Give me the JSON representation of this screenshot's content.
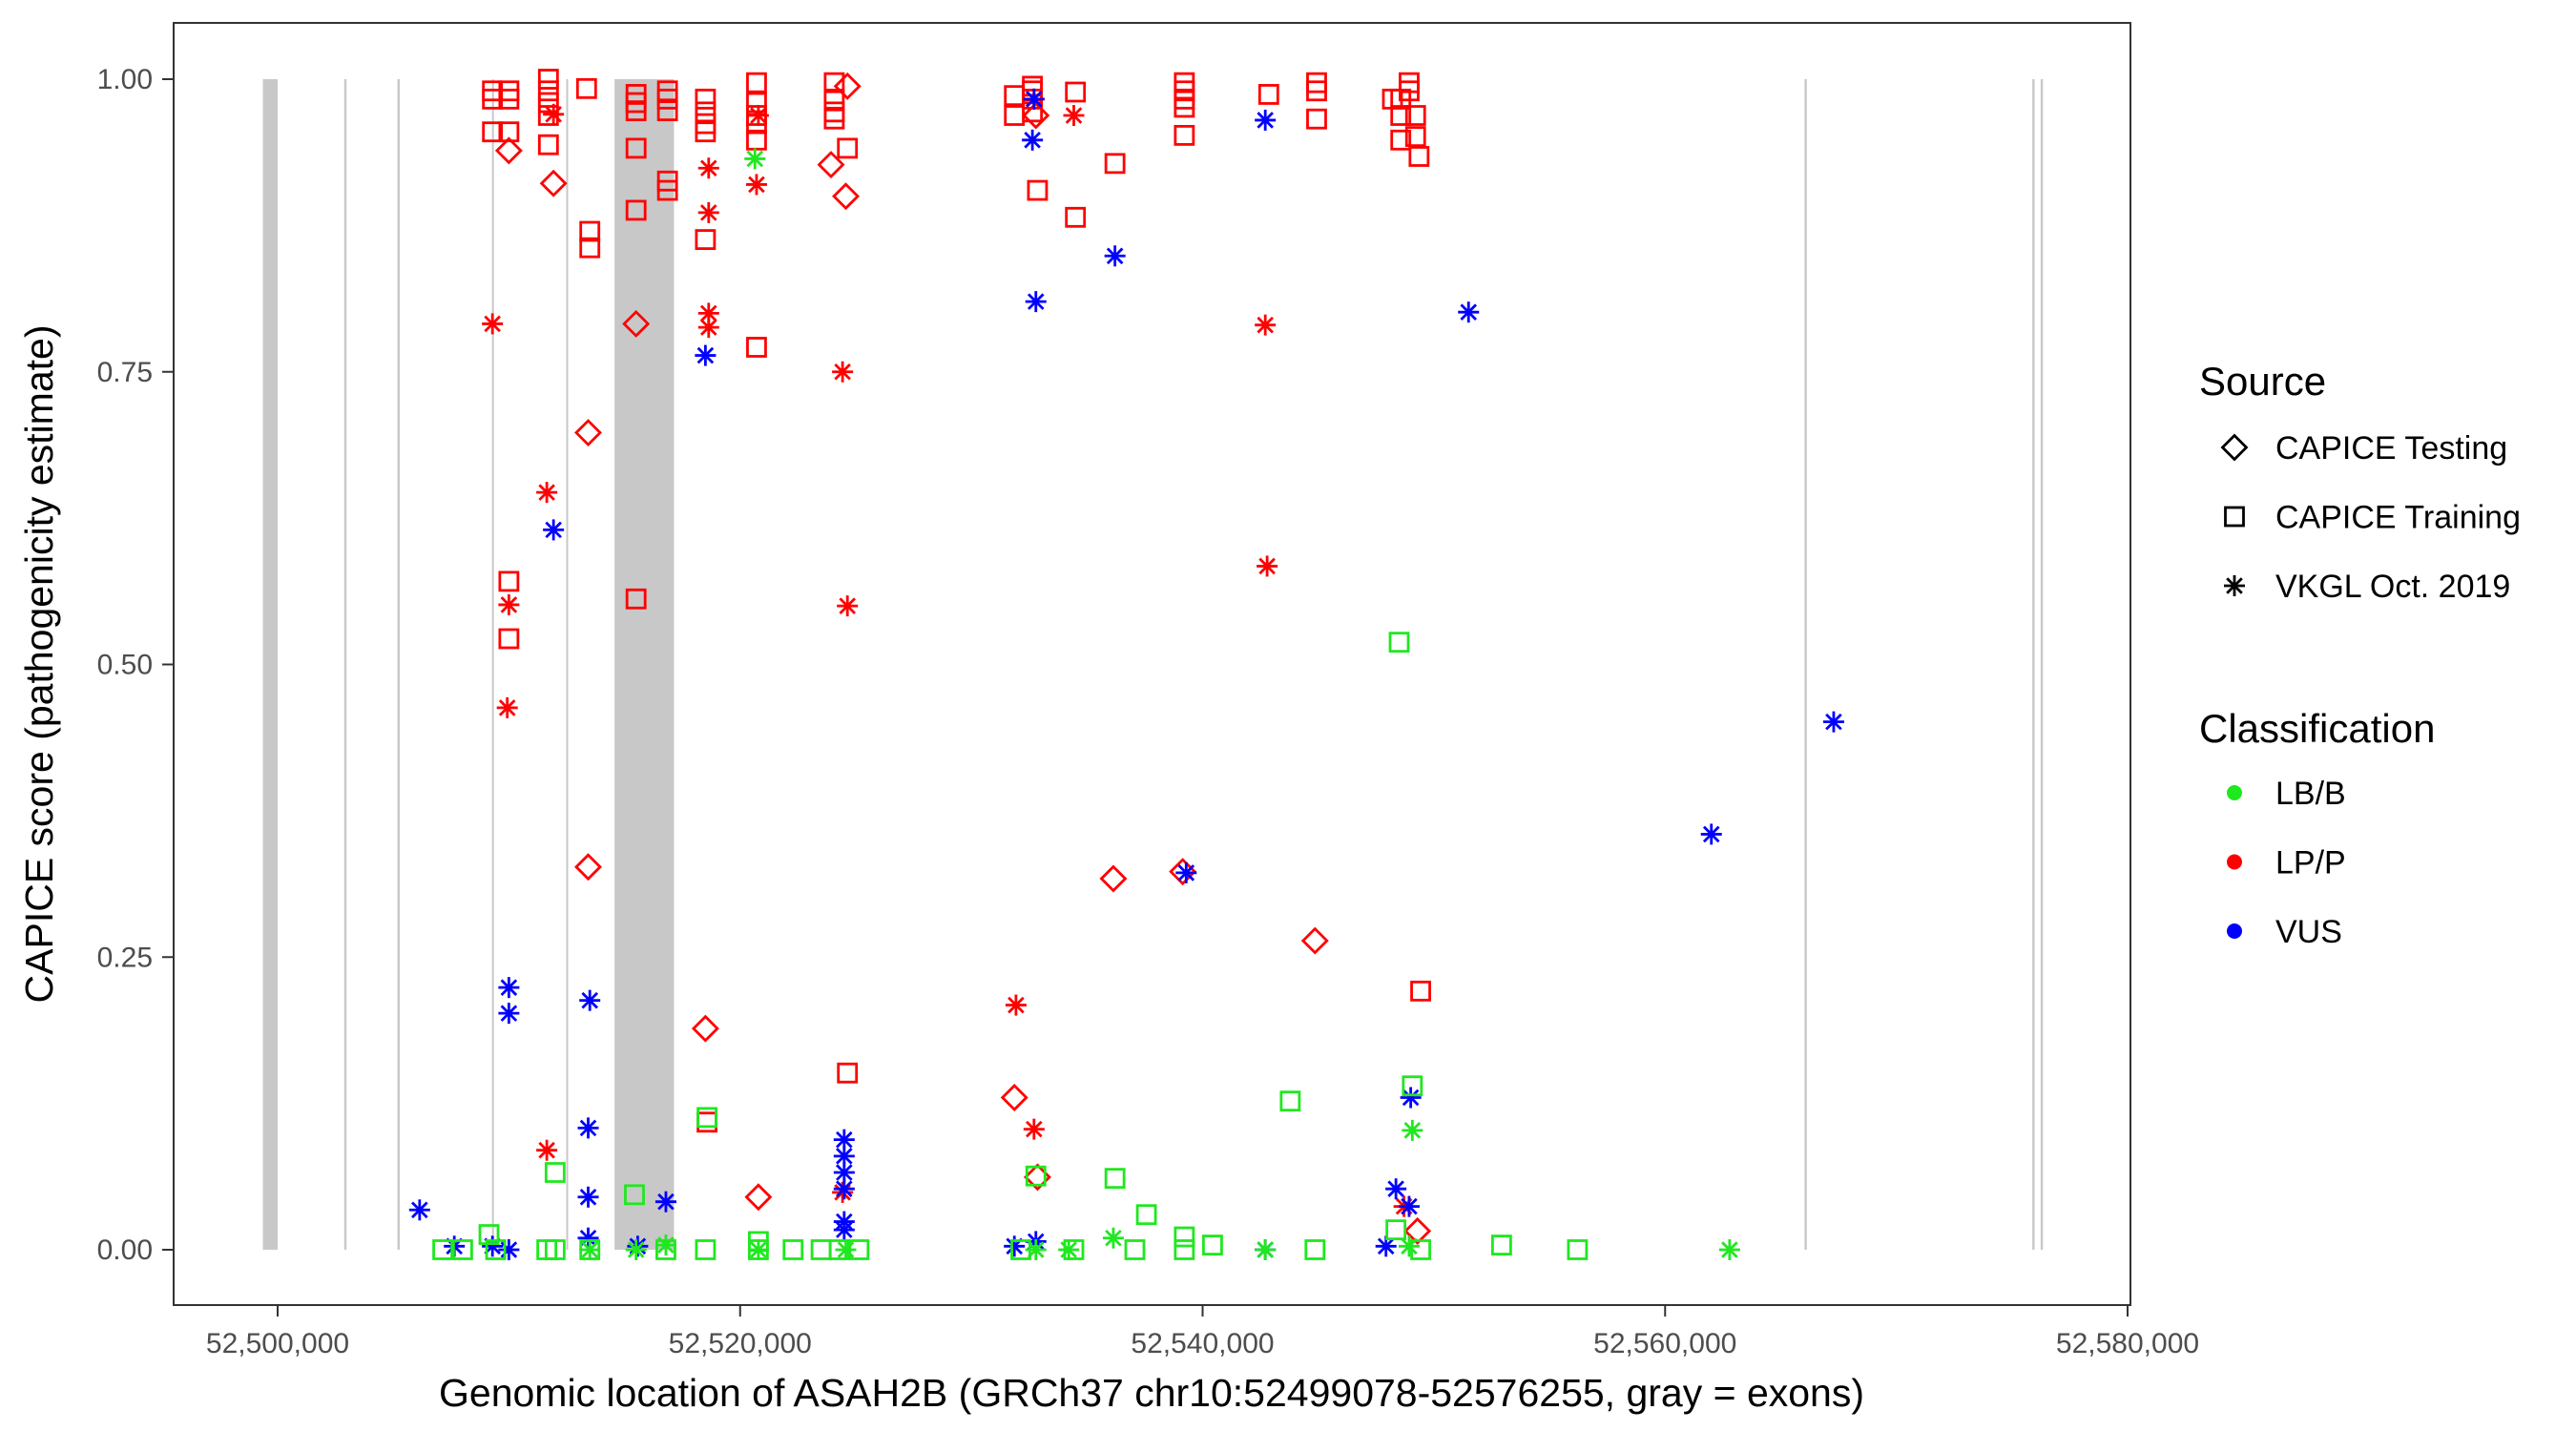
{
  "chart_data": {
    "type": "scatter",
    "xlabel": "Genomic location of ASAH2B (GRCh37 chr10:52499078-52576255, gray = exons)",
    "ylabel": "CAPICE score (pathogenicity estimate)",
    "x_origin_bp": 52500000,
    "x_unit": "kb offset from x_origin_bp",
    "xlim": [
      -0.9,
      80.1
    ],
    "ylim": [
      -0.045,
      1.045
    ],
    "x_ticks": [
      0,
      20,
      40,
      60,
      80
    ],
    "x_tick_labels": [
      "52,500,000",
      "52,520,000",
      "52,540,000",
      "52,560,000",
      "52,580,000"
    ],
    "y_ticks": [
      0,
      0.25,
      0.5,
      0.75,
      1.0
    ],
    "y_tick_labels": [
      "0.00",
      "0.25",
      "0.50",
      "0.75",
      "1.00"
    ],
    "grid": false,
    "legend_position": "right",
    "exons_kb": [
      [
        -0.64,
        0.0
      ],
      [
        2.88,
        2.98
      ],
      [
        5.18,
        5.28
      ],
      [
        9.27,
        9.31
      ],
      [
        12.48,
        12.52
      ],
      [
        14.57,
        17.14
      ],
      [
        66.03,
        66.13
      ],
      [
        75.88,
        75.98
      ],
      [
        76.24,
        76.34
      ]
    ],
    "legend": {
      "source_title": "Source",
      "sources": [
        {
          "label": "CAPICE Testing",
          "shape": "diamond"
        },
        {
          "label": "CAPICE Training",
          "shape": "square"
        },
        {
          "label": "VKGL Oct. 2019",
          "shape": "asterisk"
        }
      ],
      "class_title": "Classification",
      "classes": [
        {
          "label": "LB/B",
          "color": "#1fe81f"
        },
        {
          "label": "LP/P",
          "color": "#ff0000"
        },
        {
          "label": "VUS",
          "color": "#0000ff"
        }
      ]
    },
    "series": [
      {
        "source": "CAPICE Training",
        "class": "LP/P",
        "points": [
          [
            9.29,
            0.99
          ],
          [
            9.29,
            0.983
          ],
          [
            9.29,
            0.955
          ],
          [
            10.0,
            0.99
          ],
          [
            10.0,
            0.983
          ],
          [
            10.0,
            0.955
          ],
          [
            11.71,
            1.0
          ],
          [
            11.71,
            0.99
          ],
          [
            11.71,
            0.98
          ],
          [
            11.71,
            0.969
          ],
          [
            11.71,
            0.944
          ],
          [
            13.36,
            0.992
          ],
          [
            13.5,
            0.87
          ],
          [
            13.5,
            0.856
          ],
          [
            15.5,
            0.987
          ],
          [
            15.5,
            0.98
          ],
          [
            15.5,
            0.973
          ],
          [
            15.5,
            0.941
          ],
          [
            15.5,
            0.888
          ],
          [
            16.86,
            0.99
          ],
          [
            16.86,
            0.983
          ],
          [
            16.86,
            0.973
          ],
          [
            16.86,
            0.913
          ],
          [
            16.86,
            0.905
          ],
          [
            18.5,
            0.983
          ],
          [
            18.5,
            0.972
          ],
          [
            18.5,
            0.962
          ],
          [
            18.5,
            0.955
          ],
          [
            18.5,
            0.863
          ],
          [
            18.57,
            0.109
          ],
          [
            20.71,
            0.997
          ],
          [
            20.71,
            0.98
          ],
          [
            20.71,
            0.969
          ],
          [
            20.71,
            0.962
          ],
          [
            20.71,
            0.948
          ],
          [
            20.71,
            0.771
          ],
          [
            24.07,
            0.997
          ],
          [
            24.07,
            0.983
          ],
          [
            24.07,
            0.972
          ],
          [
            24.07,
            0.966
          ],
          [
            24.64,
            0.941
          ],
          [
            24.64,
            0.151
          ],
          [
            31.86,
            0.986
          ],
          [
            31.86,
            0.969
          ],
          [
            32.64,
            0.994
          ],
          [
            32.64,
            0.99
          ],
          [
            32.64,
            0.983
          ],
          [
            32.64,
            0.972
          ],
          [
            32.86,
            0.905
          ],
          [
            34.5,
            0.989
          ],
          [
            34.5,
            0.882
          ],
          [
            36.21,
            0.928
          ],
          [
            39.21,
            0.997
          ],
          [
            39.21,
            0.99
          ],
          [
            39.21,
            0.983
          ],
          [
            39.21,
            0.976
          ],
          [
            39.21,
            0.952
          ],
          [
            42.86,
            0.987
          ],
          [
            44.93,
            0.997
          ],
          [
            44.93,
            0.99
          ],
          [
            44.93,
            0.966
          ],
          [
            48.21,
            0.983
          ],
          [
            48.57,
            0.983
          ],
          [
            48.57,
            0.969
          ],
          [
            48.57,
            0.948
          ],
          [
            48.93,
            0.997
          ],
          [
            48.93,
            0.99
          ],
          [
            49.21,
            0.969
          ],
          [
            49.21,
            0.951
          ],
          [
            49.36,
            0.934
          ],
          [
            49.43,
            0.221
          ],
          [
            10.0,
            0.571
          ],
          [
            10.0,
            0.522
          ],
          [
            15.5,
            0.556
          ]
        ]
      },
      {
        "source": "CAPICE Testing",
        "class": "LP/P",
        "points": [
          [
            10.0,
            0.939
          ],
          [
            11.93,
            0.911
          ],
          [
            15.5,
            0.791
          ],
          [
            13.43,
            0.698
          ],
          [
            13.43,
            0.327
          ],
          [
            18.5,
            0.189
          ],
          [
            20.79,
            0.045
          ],
          [
            23.93,
            0.927
          ],
          [
            24.57,
            0.9
          ],
          [
            24.64,
            0.994
          ],
          [
            31.86,
            0.13
          ],
          [
            32.86,
            0.062
          ],
          [
            32.79,
            0.969
          ],
          [
            36.14,
            0.317
          ],
          [
            39.14,
            0.323
          ],
          [
            44.86,
            0.264
          ],
          [
            49.29,
            0.016
          ]
        ]
      },
      {
        "source": "VKGL Oct. 2019",
        "class": "LP/P",
        "points": [
          [
            9.29,
            0.791
          ],
          [
            11.64,
            0.647
          ],
          [
            10.0,
            0.551
          ],
          [
            9.93,
            0.463
          ],
          [
            11.64,
            0.085
          ],
          [
            18.64,
            0.924
          ],
          [
            18.64,
            0.886
          ],
          [
            18.64,
            0.8
          ],
          [
            18.64,
            0.788
          ],
          [
            20.71,
            0.91
          ],
          [
            20.79,
            0.969
          ],
          [
            24.43,
            0.75
          ],
          [
            24.64,
            0.55
          ],
          [
            24.43,
            0.049
          ],
          [
            31.93,
            0.209
          ],
          [
            32.71,
            0.103
          ],
          [
            34.43,
            0.969
          ],
          [
            42.71,
            0.79
          ],
          [
            42.79,
            0.584
          ],
          [
            48.71,
            0.037
          ],
          [
            32.71,
            0.983
          ],
          [
            11.93,
            0.97
          ]
        ]
      },
      {
        "source": "VKGL Oct. 2019",
        "class": "VUS",
        "points": [
          [
            6.14,
            0.034
          ],
          [
            7.64,
            0.003
          ],
          [
            9.29,
            0.003
          ],
          [
            10.0,
            0.224
          ],
          [
            10.0,
            0.202
          ],
          [
            10.0,
            0.0
          ],
          [
            11.93,
            0.615
          ],
          [
            13.5,
            0.213
          ],
          [
            13.43,
            0.104
          ],
          [
            13.43,
            0.045
          ],
          [
            13.43,
            0.01
          ],
          [
            15.57,
            0.003
          ],
          [
            16.79,
            0.041
          ],
          [
            18.5,
            0.764
          ],
          [
            24.5,
            0.094
          ],
          [
            24.5,
            0.08
          ],
          [
            24.5,
            0.066
          ],
          [
            24.5,
            0.052
          ],
          [
            24.5,
            0.024
          ],
          [
            24.5,
            0.017
          ],
          [
            31.86,
            0.003
          ],
          [
            32.64,
            0.948
          ],
          [
            32.71,
            0.983
          ],
          [
            32.79,
            0.81
          ],
          [
            32.79,
            0.007
          ],
          [
            36.21,
            0.849
          ],
          [
            39.29,
            0.322
          ],
          [
            42.71,
            0.965
          ],
          [
            42.71,
            0.0
          ],
          [
            47.93,
            0.003
          ],
          [
            48.36,
            0.052
          ],
          [
            48.93,
            0.037
          ],
          [
            49.0,
            0.13
          ],
          [
            51.5,
            0.801
          ],
          [
            62.0,
            0.355
          ],
          [
            67.29,
            0.451
          ]
        ]
      },
      {
        "source": "CAPICE Training",
        "class": "LB/B",
        "points": [
          [
            7.14,
            0.0
          ],
          [
            8.0,
            0.0
          ],
          [
            9.14,
            0.013
          ],
          [
            9.43,
            0.0
          ],
          [
            11.64,
            0.0
          ],
          [
            12.0,
            0.0
          ],
          [
            12.0,
            0.066
          ],
          [
            13.5,
            0.0
          ],
          [
            15.43,
            0.047
          ],
          [
            16.79,
            0.0
          ],
          [
            18.5,
            0.0
          ],
          [
            18.57,
            0.113
          ],
          [
            20.79,
            0.0
          ],
          [
            20.79,
            0.007
          ],
          [
            22.29,
            0.0
          ],
          [
            23.5,
            0.0
          ],
          [
            24.29,
            0.0
          ],
          [
            25.14,
            0.0
          ],
          [
            32.14,
            0.0
          ],
          [
            32.79,
            0.063
          ],
          [
            34.43,
            0.0
          ],
          [
            36.21,
            0.061
          ],
          [
            37.07,
            0.0
          ],
          [
            37.57,
            0.03
          ],
          [
            39.21,
            0.011
          ],
          [
            39.21,
            0.0
          ],
          [
            40.43,
            0.004
          ],
          [
            43.79,
            0.127
          ],
          [
            44.86,
            0.0
          ],
          [
            48.36,
            0.017
          ],
          [
            48.5,
            0.519
          ],
          [
            49.07,
            0.14
          ],
          [
            49.43,
            0.0
          ],
          [
            52.93,
            0.004
          ],
          [
            56.21,
            0.0
          ]
        ]
      },
      {
        "source": "VKGL Oct. 2019",
        "class": "LB/B",
        "points": [
          [
            13.5,
            0.0
          ],
          [
            15.5,
            0.0
          ],
          [
            16.79,
            0.004
          ],
          [
            20.64,
            0.932
          ],
          [
            20.79,
            0.0
          ],
          [
            24.57,
            0.0
          ],
          [
            32.79,
            0.0
          ],
          [
            34.21,
            0.0
          ],
          [
            36.14,
            0.01
          ],
          [
            42.71,
            0.0
          ],
          [
            49.07,
            0.102
          ],
          [
            48.93,
            0.003
          ],
          [
            62.79,
            0.0
          ]
        ]
      }
    ]
  }
}
